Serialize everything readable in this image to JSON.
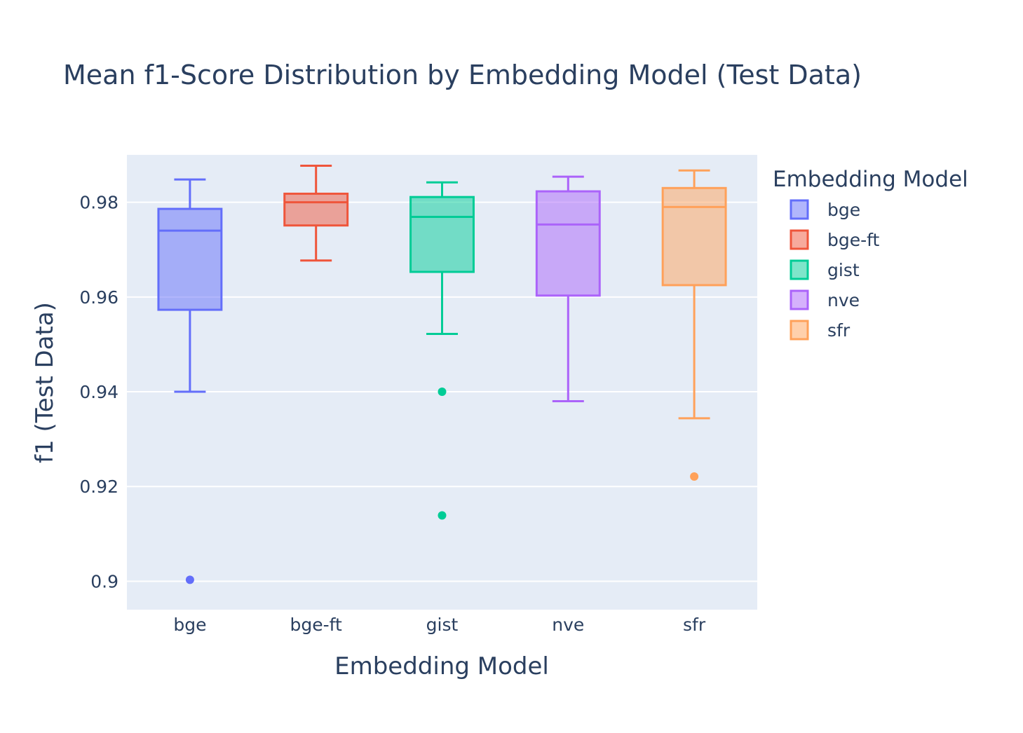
{
  "chart_data": {
    "type": "box",
    "title": "Mean f1-Score Distribution by Embedding Model (Test Data)",
    "xlabel": "Embedding Model",
    "ylabel": "f1 (Test Data)",
    "ylim": [
      0.894,
      0.99
    ],
    "yticks": [
      0.9,
      0.92,
      0.94,
      0.96,
      0.98
    ],
    "ytick_labels": [
      "0.9",
      "0.92",
      "0.94",
      "0.96",
      "0.98"
    ],
    "categories": [
      "bge",
      "bge-ft",
      "gist",
      "nve",
      "sfr"
    ],
    "grid": true,
    "legend": {
      "title": "Embedding Model",
      "placement": "right"
    },
    "series": [
      {
        "name": "bge",
        "color": "#636efa",
        "fill": "rgba(99,110,250,0.5)",
        "min": 0.94,
        "q1": 0.9573,
        "median": 0.974,
        "q3": 0.9786,
        "max": 0.9848,
        "outliers": [
          0.9003
        ]
      },
      {
        "name": "bge-ft",
        "color": "#ef553b",
        "fill": "rgba(239,85,59,0.5)",
        "min": 0.9677,
        "q1": 0.9751,
        "median": 0.98,
        "q3": 0.9818,
        "max": 0.9877,
        "outliers": []
      },
      {
        "name": "gist",
        "color": "#00cc96",
        "fill": "rgba(0,204,150,0.5)",
        "min": 0.9522,
        "q1": 0.9653,
        "median": 0.9769,
        "q3": 0.9811,
        "max": 0.9842,
        "outliers": [
          0.94,
          0.9139
        ]
      },
      {
        "name": "nve",
        "color": "#ab63fa",
        "fill": "rgba(171,99,250,0.5)",
        "min": 0.938,
        "q1": 0.9603,
        "median": 0.9753,
        "q3": 0.9823,
        "max": 0.9854,
        "outliers": []
      },
      {
        "name": "sfr",
        "color": "#ffa15a",
        "fill": "rgba(255,161,90,0.5)",
        "min": 0.9344,
        "q1": 0.9625,
        "median": 0.979,
        "q3": 0.983,
        "max": 0.9867,
        "outliers": [
          0.9221
        ]
      }
    ]
  }
}
